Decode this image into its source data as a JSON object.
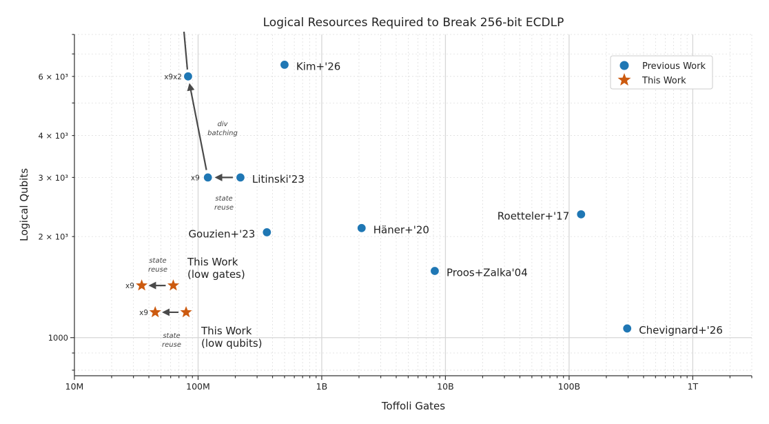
{
  "chart_data": {
    "type": "scatter",
    "title": "Logical Resources Required to Break 256-bit ECDLP",
    "xlabel": "Toffoli Gates",
    "ylabel": "Logical Qubits",
    "x_scale": "log",
    "y_scale": "log",
    "xlim": [
      10000000.0,
      3000000000000.0
    ],
    "ylim": [
      770,
      8000
    ],
    "grid": true,
    "legend": "top-right",
    "x_ticks": [
      {
        "value": 10000000.0,
        "label": "10M"
      },
      {
        "value": 100000000.0,
        "label": "100M"
      },
      {
        "value": 1000000000.0,
        "label": "1B"
      },
      {
        "value": 10000000000.0,
        "label": "10B"
      },
      {
        "value": 100000000000.0,
        "label": "100B"
      },
      {
        "value": 1000000000000.0,
        "label": "1T"
      }
    ],
    "y_ticks": [
      {
        "value": 1000,
        "label": "1000"
      },
      {
        "value": 2000,
        "label": "2 × 10³"
      },
      {
        "value": 3000,
        "label": "3 × 10³"
      },
      {
        "value": 4000,
        "label": "4 × 10³"
      },
      {
        "value": 6000,
        "label": "6 × 10³"
      }
    ],
    "series": [
      {
        "name": "Previous Work",
        "marker": "circle",
        "color": "#1f77b4",
        "points": [
          {
            "x": 500000000.0,
            "y": 6500,
            "label": "Kim+'26",
            "label_pos": "right"
          },
          {
            "x": 220000000.0,
            "y": 3000,
            "label": "Litinski'23",
            "label_pos": "right"
          },
          {
            "x": 120000000.0,
            "y": 3000,
            "label": "",
            "label_pos": "none"
          },
          {
            "x": 83000000.0,
            "y": 6000,
            "label": "",
            "label_pos": "none"
          },
          {
            "x": 360000000.0,
            "y": 2060,
            "label": "Gouzien+'23",
            "label_pos": "left"
          },
          {
            "x": 2100000000.0,
            "y": 2120,
            "label": "Häner+'20",
            "label_pos": "right"
          },
          {
            "x": 125000000000.0,
            "y": 2330,
            "label": "Roetteler+'17",
            "label_pos": "left"
          },
          {
            "x": 8200000000.0,
            "y": 1580,
            "label": "Proos+Zalka'04",
            "label_pos": "right"
          },
          {
            "x": 295000000000.0,
            "y": 1065,
            "label": "Chevignard+'26",
            "label_pos": "right"
          }
        ]
      },
      {
        "name": "This Work",
        "marker": "star",
        "color": "#cc5a0f",
        "points": [
          {
            "x": 63000000.0,
            "y": 1430
          },
          {
            "x": 35000000.0,
            "y": 1430
          },
          {
            "x": 80000000.0,
            "y": 1190
          },
          {
            "x": 45000000.0,
            "y": 1190
          }
        ]
      }
    ],
    "annotations": [
      {
        "id": "x9x2",
        "text": "x9x2",
        "x": 74000000.0,
        "y": 6000,
        "anchor": "end"
      },
      {
        "id": "x9-litinski",
        "text": "x9",
        "x": 103000000.0,
        "y": 3000,
        "anchor": "end"
      },
      {
        "id": "x9-low-gates",
        "text": "x9",
        "x": 30500000.0,
        "y": 1430,
        "anchor": "end"
      },
      {
        "id": "x9-low-qubits",
        "text": "x9",
        "x": 39500000.0,
        "y": 1190,
        "anchor": "end"
      }
    ],
    "notes": [
      {
        "id": "div-batching",
        "lines": [
          "div",
          "batching"
        ]
      },
      {
        "id": "state-reuse-litinski",
        "lines": [
          "state",
          "reuse"
        ]
      },
      {
        "id": "state-reuse-low-gates",
        "lines": [
          "state",
          "reuse"
        ]
      },
      {
        "id": "state-reuse-low-qubits",
        "lines": [
          "state",
          "reuse"
        ]
      }
    ],
    "group_labels": [
      {
        "id": "low-gates",
        "lines": [
          "This Work",
          "(low gates)"
        ]
      },
      {
        "id": "low-qubits",
        "lines": [
          "This Work",
          "(low qubits)"
        ]
      }
    ],
    "arrows": [
      {
        "from": [
          220000000.0,
          3000
        ],
        "to": [
          120000000.0,
          3000
        ]
      },
      {
        "from": [
          120000000.0,
          3000
        ],
        "to": [
          83000000.0,
          6000
        ]
      },
      {
        "from": [
          63000000.0,
          1430
        ],
        "to": [
          35000000.0,
          1430
        ]
      },
      {
        "from": [
          80000000.0,
          1190
        ],
        "to": [
          45000000.0,
          1190
        ]
      }
    ]
  }
}
